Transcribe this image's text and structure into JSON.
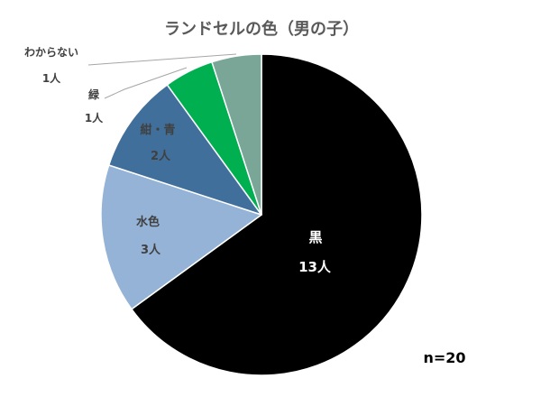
{
  "chart_data": {
    "type": "pie",
    "title": "ランドセルの色（男の子）",
    "categories": [
      "黒",
      "水色",
      "紺・青",
      "緑",
      "わからない"
    ],
    "values": [
      13,
      3,
      2,
      1,
      1
    ],
    "data_labels": [
      "13人",
      "3人",
      "2人",
      "1人",
      "1人"
    ],
    "colors": [
      "#000000",
      "#95B3D7",
      "#416F9B",
      "#00B050",
      "#7AA698"
    ],
    "annotation": "n=20"
  }
}
